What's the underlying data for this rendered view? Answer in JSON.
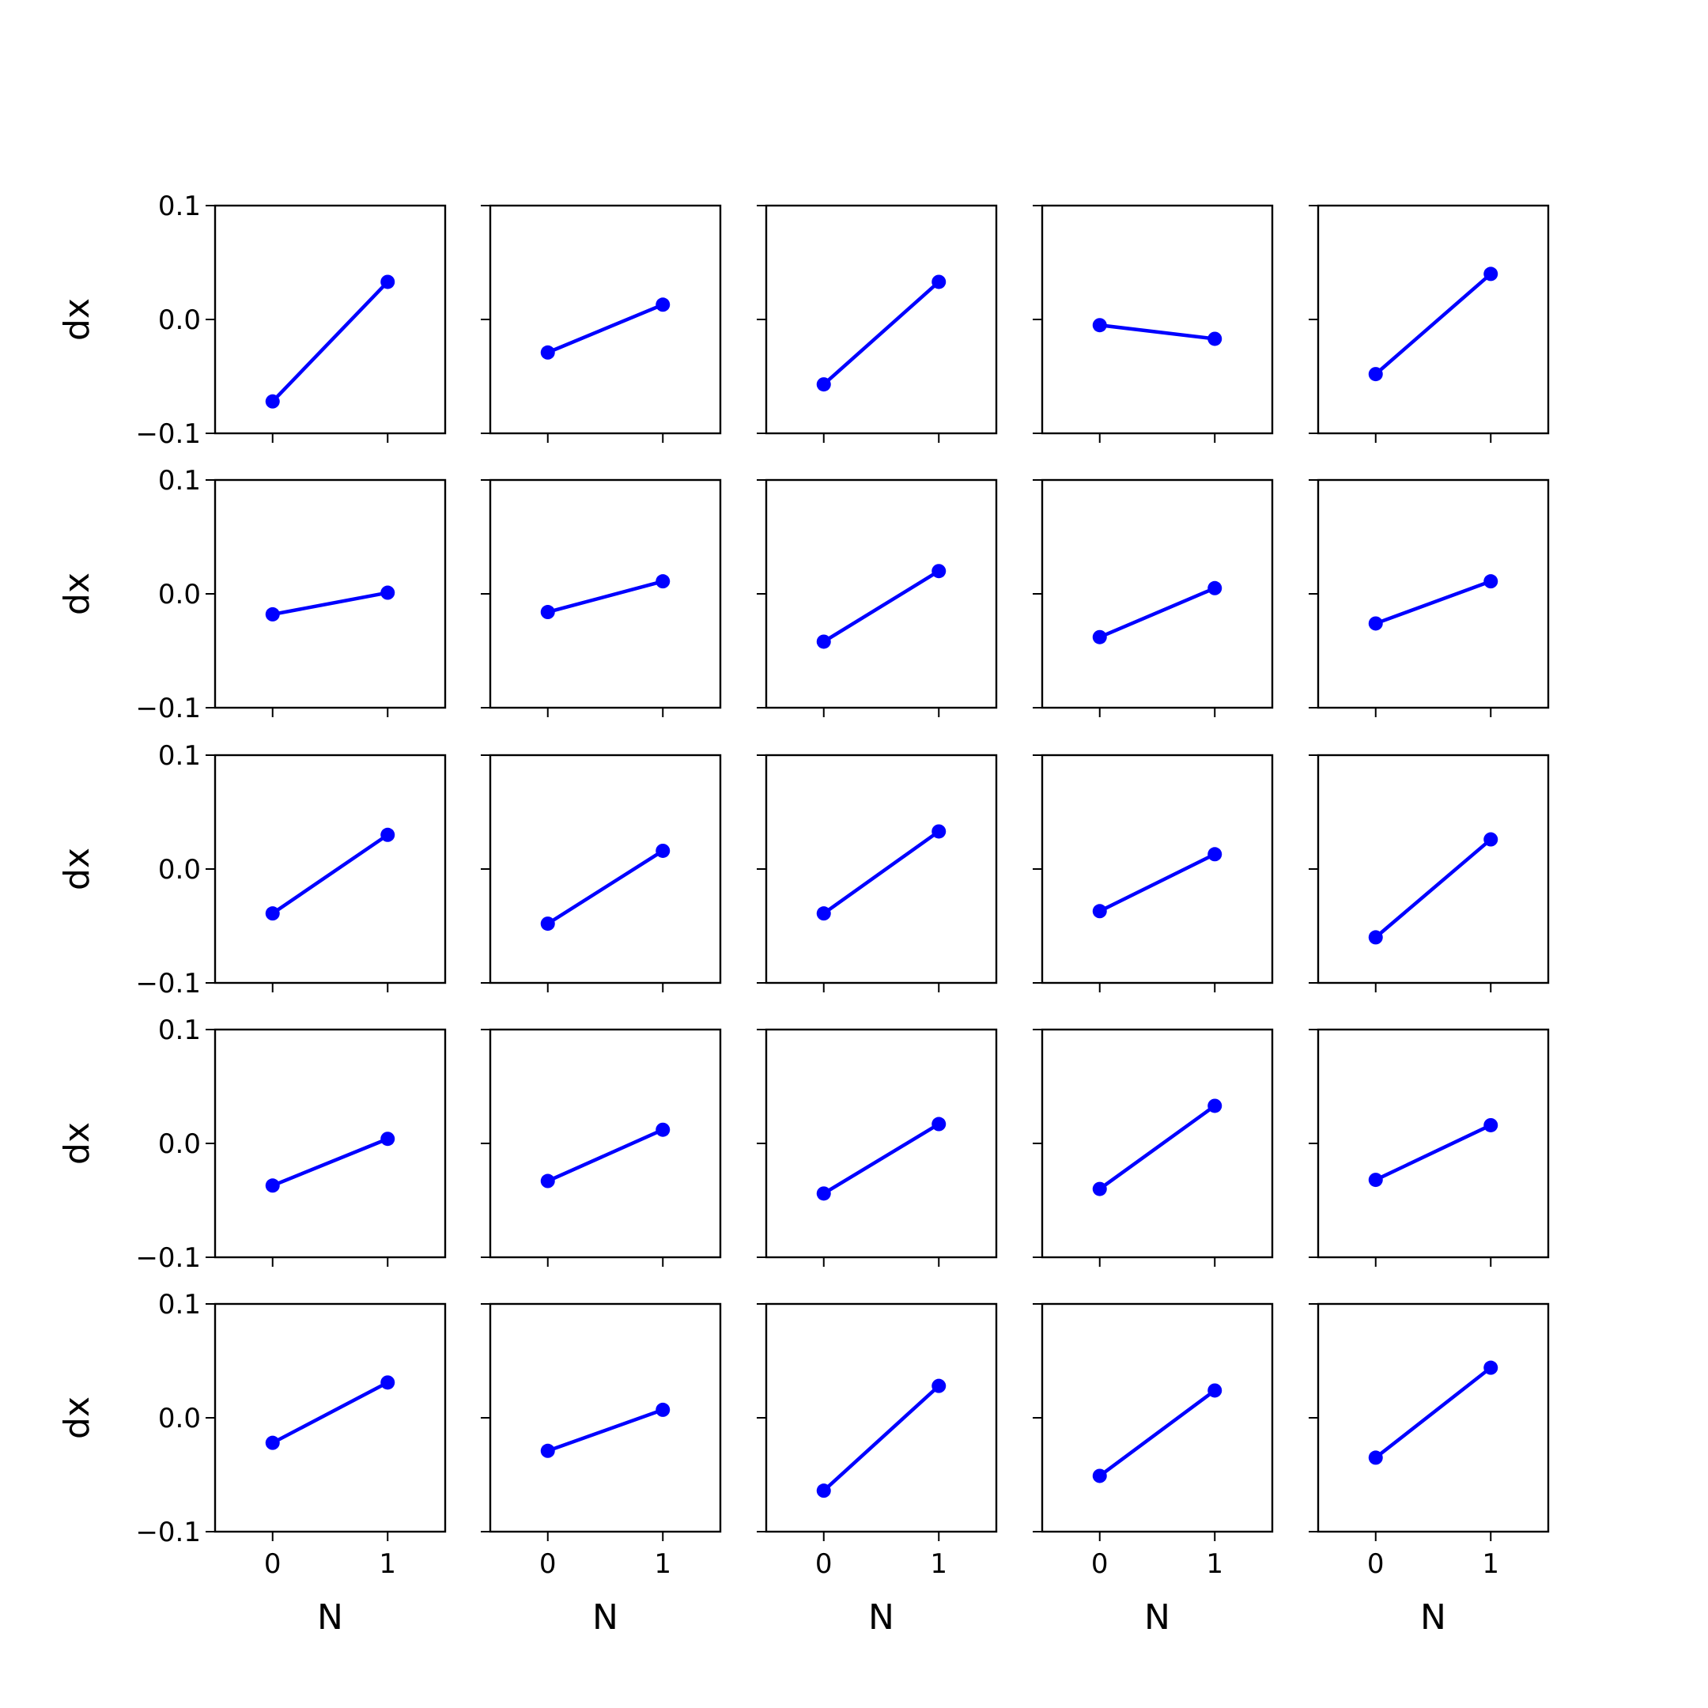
{
  "chart_data": {
    "type": "line",
    "layout": "5x5 grid of subplots, shared axes",
    "xlabel": "N",
    "ylabel": "dx",
    "x": [
      0,
      1
    ],
    "xlim": [
      -0.5,
      1.5
    ],
    "ylim": [
      -0.1,
      0.1
    ],
    "xticks": [
      "0",
      "1"
    ],
    "yticks": [
      "−0.1",
      "0.0",
      "0.1"
    ],
    "series_color": "#0000ff",
    "marker": "circle",
    "grid": false,
    "legend": "none",
    "panels": [
      {
        "row": 1,
        "col": 1,
        "values": [
          -0.072,
          0.033
        ]
      },
      {
        "row": 1,
        "col": 2,
        "values": [
          -0.029,
          0.013
        ]
      },
      {
        "row": 1,
        "col": 3,
        "values": [
          -0.057,
          0.033
        ]
      },
      {
        "row": 1,
        "col": 4,
        "values": [
          -0.005,
          -0.017
        ]
      },
      {
        "row": 1,
        "col": 5,
        "values": [
          -0.048,
          0.04
        ]
      },
      {
        "row": 2,
        "col": 1,
        "values": [
          -0.018,
          0.001
        ]
      },
      {
        "row": 2,
        "col": 2,
        "values": [
          -0.016,
          0.011
        ]
      },
      {
        "row": 2,
        "col": 3,
        "values": [
          -0.042,
          0.02
        ]
      },
      {
        "row": 2,
        "col": 4,
        "values": [
          -0.038,
          0.005
        ]
      },
      {
        "row": 2,
        "col": 5,
        "values": [
          -0.026,
          0.011
        ]
      },
      {
        "row": 3,
        "col": 1,
        "values": [
          -0.039,
          0.03
        ]
      },
      {
        "row": 3,
        "col": 2,
        "values": [
          -0.048,
          0.016
        ]
      },
      {
        "row": 3,
        "col": 3,
        "values": [
          -0.039,
          0.033
        ]
      },
      {
        "row": 3,
        "col": 4,
        "values": [
          -0.037,
          0.013
        ]
      },
      {
        "row": 3,
        "col": 5,
        "values": [
          -0.06,
          0.026
        ]
      },
      {
        "row": 4,
        "col": 1,
        "values": [
          -0.037,
          0.004
        ]
      },
      {
        "row": 4,
        "col": 2,
        "values": [
          -0.033,
          0.012
        ]
      },
      {
        "row": 4,
        "col": 3,
        "values": [
          -0.044,
          0.017
        ]
      },
      {
        "row": 4,
        "col": 4,
        "values": [
          -0.04,
          0.033
        ]
      },
      {
        "row": 4,
        "col": 5,
        "values": [
          -0.032,
          0.016
        ]
      },
      {
        "row": 5,
        "col": 1,
        "values": [
          -0.022,
          0.031
        ]
      },
      {
        "row": 5,
        "col": 2,
        "values": [
          -0.029,
          0.007
        ]
      },
      {
        "row": 5,
        "col": 3,
        "values": [
          -0.064,
          0.028
        ]
      },
      {
        "row": 5,
        "col": 4,
        "values": [
          -0.051,
          0.024
        ]
      },
      {
        "row": 5,
        "col": 5,
        "values": [
          -0.035,
          0.044
        ]
      }
    ]
  }
}
